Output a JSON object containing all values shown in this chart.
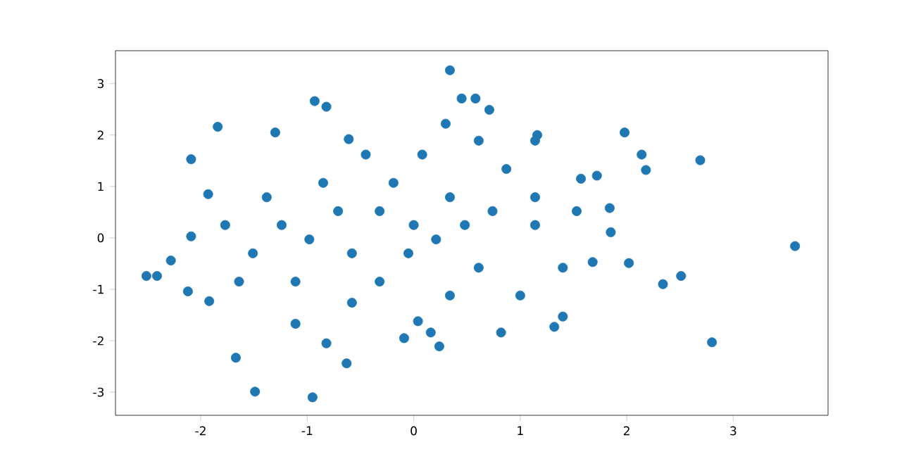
{
  "chart_data": {
    "type": "scatter",
    "color": "#1f77b4",
    "marker": "circle",
    "grid": false,
    "xlim": [
      -2.8,
      3.89
    ],
    "ylim": [
      -3.45,
      3.64
    ],
    "xticks": [
      -2,
      -1,
      0,
      1,
      2,
      3
    ],
    "yticks": [
      -3,
      -2,
      -1,
      0,
      1,
      2,
      3
    ],
    "x": [
      0.34,
      -0.93,
      -0.82,
      -1.84,
      -1.3,
      -0.61,
      0.45,
      0.58,
      0.71,
      0.3,
      1.98,
      2.69,
      2.14,
      2.18,
      -2.09,
      -1.93,
      -2.09,
      -2.41,
      -2.51,
      -2.28,
      -2.12,
      -1.92,
      -1.67,
      -1.49,
      -0.95,
      -0.63,
      -0.82,
      3.58,
      2.8,
      2.34,
      2.51,
      2.02,
      1.68,
      1.85,
      1.84,
      1.72,
      1.57,
      1.16,
      1.14,
      0.82,
      0.24,
      -0.09,
      0.16,
      1.32,
      1.4,
      0.04,
      0,
      -0.32,
      0.34,
      -0.58,
      0.61,
      -1.24,
      1.14,
      -0.85,
      0.87,
      -0.45,
      0.08,
      -1.11,
      0.34,
      -0.32,
      -1.51,
      1.4,
      -1.77,
      1.53,
      0.74,
      -0.71,
      -0.05,
      0.21,
      0.48,
      -0.98,
      -1.38,
      -0.58,
      1.0,
      -0.19,
      0.61,
      -1.11,
      1.14,
      -1.64
    ],
    "values": [
      3.26,
      2.66,
      2.55,
      2.16,
      2.05,
      1.92,
      2.71,
      2.71,
      2.49,
      2.22,
      2.05,
      1.51,
      1.62,
      1.32,
      1.53,
      0.85,
      0.03,
      -0.74,
      -0.74,
      -0.44,
      -1.04,
      -1.23,
      -2.33,
      -2.99,
      -3.1,
      -2.44,
      -2.05,
      -0.16,
      -2.03,
      -0.9,
      -0.74,
      -0.49,
      -0.47,
      0.11,
      0.58,
      1.21,
      1.15,
      2.0,
      1.89,
      -1.84,
      -2.11,
      -1.95,
      -1.84,
      -1.73,
      -1.53,
      -1.62,
      0.25,
      0.52,
      0.79,
      -0.3,
      -0.58,
      0.25,
      0.25,
      1.07,
      1.34,
      1.62,
      1.62,
      -0.85,
      -1.12,
      -0.85,
      -0.3,
      -0.58,
      0.25,
      0.52,
      0.52,
      0.52,
      -0.3,
      -0.03,
      0.25,
      -0.03,
      0.79,
      -1.26,
      -1.12,
      1.07,
      1.89,
      -1.67,
      0.79,
      -0.85
    ]
  }
}
